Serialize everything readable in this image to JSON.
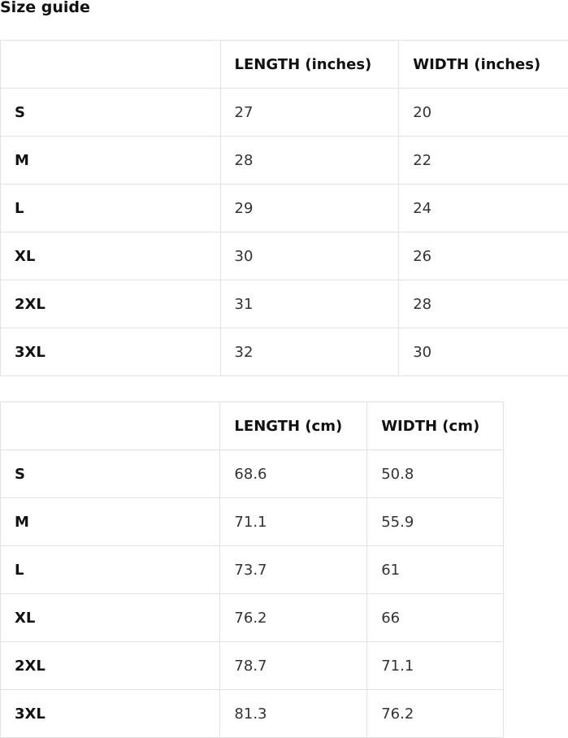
{
  "title": "Size guide",
  "tables": [
    {
      "headers": [
        "",
        "LENGTH (inches)",
        "WIDTH (inches)"
      ],
      "rows": [
        [
          "S",
          "27",
          "20"
        ],
        [
          "M",
          "28",
          "22"
        ],
        [
          "L",
          "29",
          "24"
        ],
        [
          "XL",
          "30",
          "26"
        ],
        [
          "2XL",
          "31",
          "28"
        ],
        [
          "3XL",
          "32",
          "30"
        ]
      ]
    },
    {
      "headers": [
        "",
        "LENGTH (cm)",
        "WIDTH (cm)"
      ],
      "rows": [
        [
          "S",
          "68.6",
          "50.8"
        ],
        [
          "M",
          "71.1",
          "55.9"
        ],
        [
          "L",
          "73.7",
          "61"
        ],
        [
          "XL",
          "76.2",
          "66"
        ],
        [
          "2XL",
          "78.7",
          "71.1"
        ],
        [
          "3XL",
          "81.3",
          "76.2"
        ]
      ]
    }
  ]
}
